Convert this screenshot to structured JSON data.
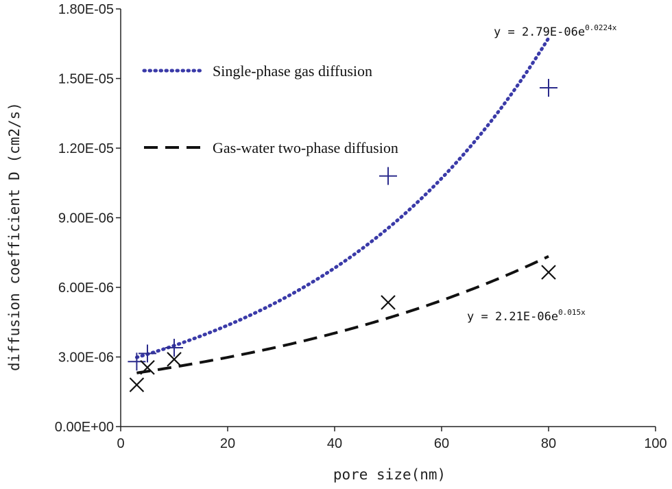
{
  "chart_data": {
    "type": "scatter",
    "xlabel": "pore size(nm)",
    "ylabel": "diffusion coefficient D (cm2/s)",
    "xlim": [
      0,
      100
    ],
    "ylim": [
      0,
      1.8e-05
    ],
    "x_ticks": [
      0,
      20,
      40,
      60,
      80,
      100
    ],
    "x_tick_labels": [
      "0",
      "20",
      "40",
      "60",
      "80",
      "100"
    ],
    "y_ticks": [
      0,
      3e-06,
      6e-06,
      9e-06,
      1.2e-05,
      1.5e-05,
      1.8e-05
    ],
    "y_tick_labels": [
      "0.00E+00",
      "3.00E-06",
      "6.00E-06",
      "9.00E-06",
      "1.20E-05",
      "1.50E-05",
      "1.80E-05"
    ],
    "grid": false,
    "series": [
      {
        "name": "Single-phase gas diffusion",
        "marker": "plus",
        "color": "#2b2b8c",
        "points": [
          {
            "x": 3,
            "y": 2.8e-06
          },
          {
            "x": 5,
            "y": 3.15e-06
          },
          {
            "x": 10,
            "y": 3.4e-06
          },
          {
            "x": 50,
            "y": 1.08e-05
          },
          {
            "x": 80,
            "y": 1.46e-05
          }
        ],
        "trendline": {
          "style": "dotted",
          "color": "#3a3aa8",
          "a": 2.79e-06,
          "b": 0.0224,
          "x_range": [
            3,
            80
          ],
          "equation_main": "y = 2.79E-06e",
          "equation_exp": "0.0224x"
        }
      },
      {
        "name": "Gas-water two-phase diffusion",
        "marker": "cross",
        "color": "#111111",
        "points": [
          {
            "x": 3,
            "y": 1.8e-06
          },
          {
            "x": 5,
            "y": 2.55e-06
          },
          {
            "x": 10,
            "y": 2.9e-06
          },
          {
            "x": 50,
            "y": 5.35e-06
          },
          {
            "x": 80,
            "y": 6.65e-06
          }
        ],
        "trendline": {
          "style": "dashed",
          "color": "#111111",
          "a": 2.21e-06,
          "b": 0.015,
          "x_range": [
            3,
            80
          ],
          "equation_main": "y = 2.21E-06e",
          "equation_exp": "0.015x"
        }
      }
    ]
  }
}
